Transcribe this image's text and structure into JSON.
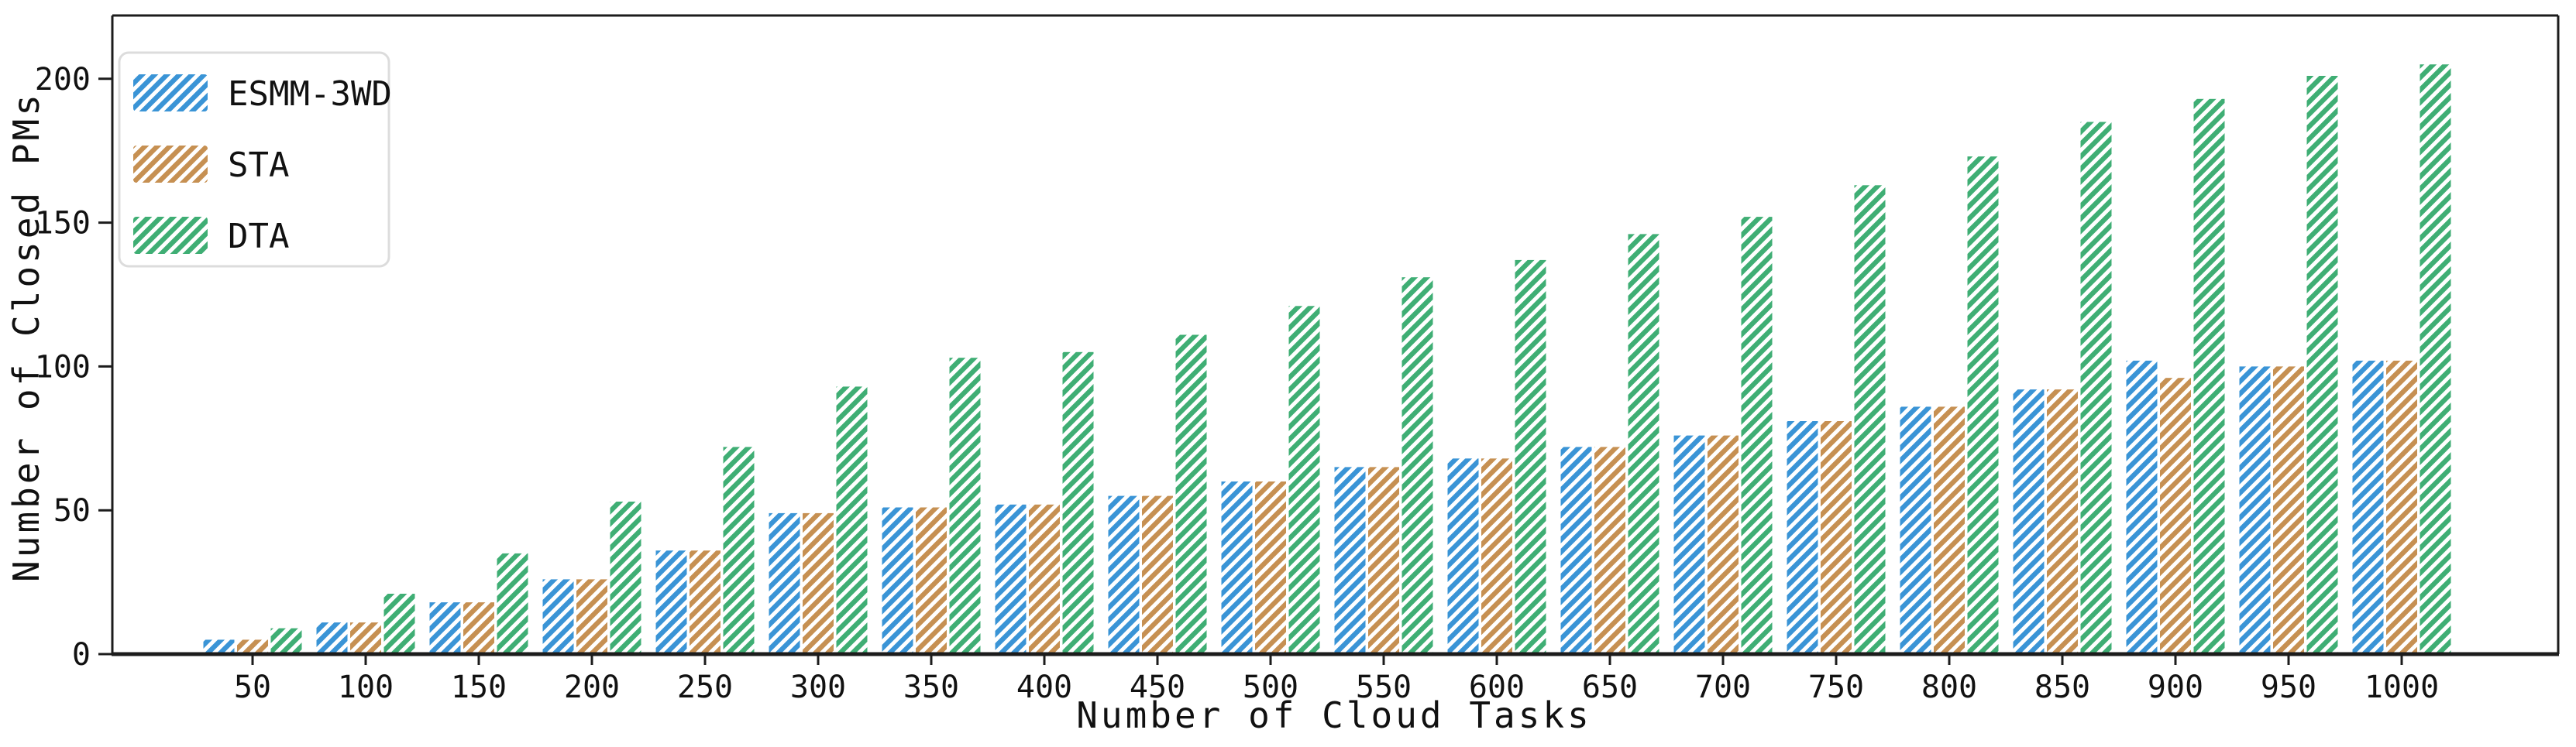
{
  "chart_data": {
    "type": "bar",
    "title": "",
    "xlabel": "Number of Cloud Tasks",
    "ylabel": "Number of Closed PMs",
    "categories": [
      50,
      100,
      150,
      200,
      250,
      300,
      350,
      400,
      450,
      500,
      550,
      600,
      650,
      700,
      750,
      800,
      850,
      900,
      950,
      1000
    ],
    "series": [
      {
        "name": "ESMM-3WD",
        "color": "#3a94d6",
        "values": [
          5,
          11,
          18,
          26,
          36,
          49,
          51,
          52,
          55,
          60,
          65,
          68,
          72,
          76,
          81,
          86,
          92,
          102,
          100,
          102
        ]
      },
      {
        "name": "STA",
        "color": "#c69052",
        "values": [
          5,
          11,
          18,
          26,
          36,
          49,
          51,
          52,
          55,
          60,
          65,
          68,
          72,
          76,
          81,
          86,
          92,
          96,
          100,
          102
        ]
      },
      {
        "name": "DTA",
        "color": "#3fae74",
        "values": [
          9,
          21,
          35,
          53,
          72,
          93,
          103,
          105,
          111,
          121,
          131,
          137,
          146,
          152,
          163,
          173,
          185,
          193,
          201,
          205
        ]
      }
    ],
    "ylim": [
      0,
      222
    ],
    "yticks": [
      0,
      50,
      100,
      150,
      200
    ],
    "xticklabels": [
      "50",
      "100",
      "150",
      "200",
      "250",
      "300",
      "350",
      "400",
      "450",
      "500",
      "550",
      "600",
      "650",
      "700",
      "750",
      "800",
      "850",
      "900",
      "950",
      "1000"
    ],
    "legend": {
      "position": "upper-left",
      "entries": [
        "ESMM-3WD",
        "STA",
        "DTA"
      ],
      "border_color": "#dcdcdc",
      "background": "#ffffff"
    },
    "grid": false,
    "hatch": "//",
    "hatch_color": "#ffffff",
    "frame_color": "#1c1c1c",
    "text_color": "#111111",
    "background": "#ffffff"
  }
}
